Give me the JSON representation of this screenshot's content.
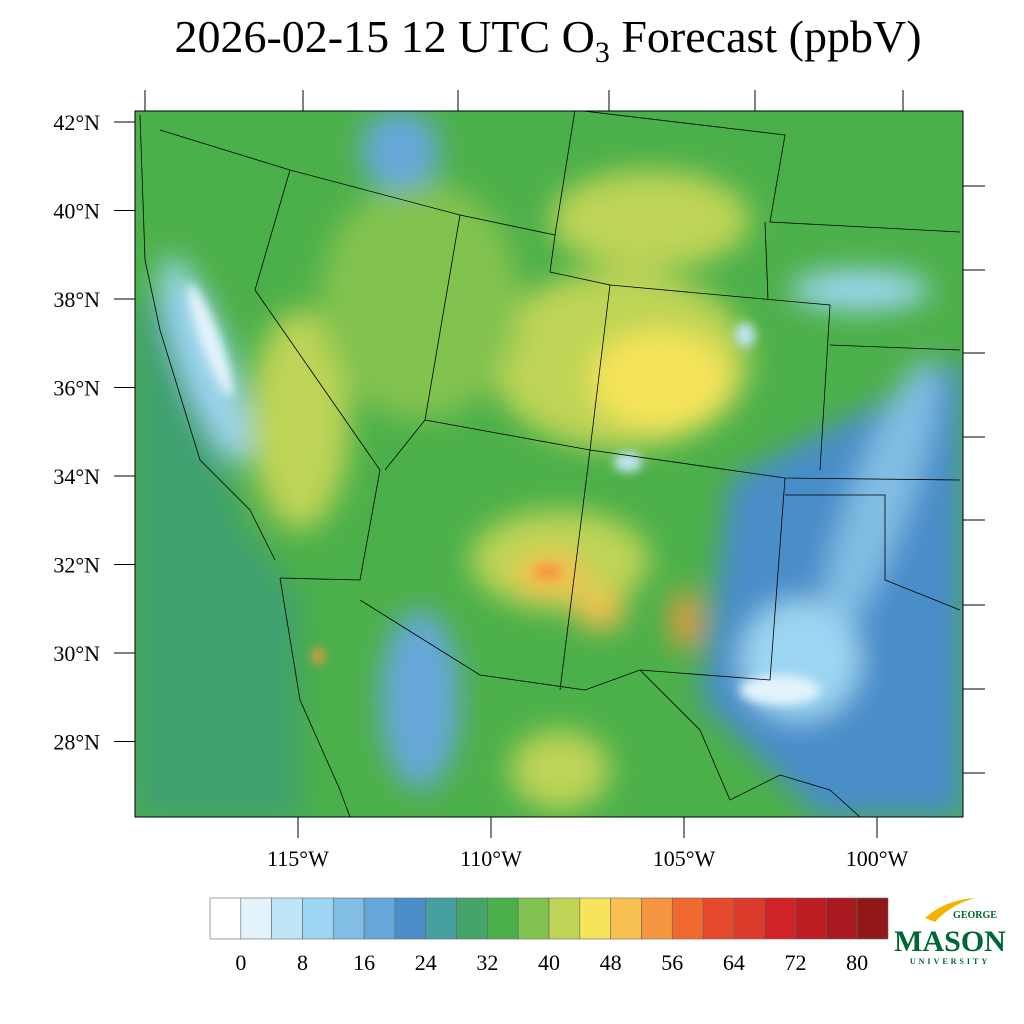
{
  "title": {
    "main": "2026-02-15 12 UTC O",
    "subscript": "3",
    "rest": " Forecast (ppbV)"
  },
  "map": {
    "lat_labels": [
      "42°N",
      "40°N",
      "38°N",
      "36°N",
      "34°N",
      "32°N",
      "30°N",
      "28°N"
    ],
    "lon_labels": [
      "115°W",
      "110°W",
      "105°W",
      "100°W"
    ]
  },
  "colorbar": {
    "colors": [
      "#ffffff",
      "#e2f3fb",
      "#bfe4f6",
      "#9dd6f2",
      "#82bde3",
      "#66a7da",
      "#4a8dc9",
      "#46a0a0",
      "#44a46a",
      "#4cb04a",
      "#82c250",
      "#bed456",
      "#f6e45a",
      "#f8c050",
      "#f69640",
      "#f06a30",
      "#e64a2c",
      "#dc3a2a",
      "#d02428",
      "#bc1e24",
      "#a81a20",
      "#901818"
    ],
    "ticks": [
      0,
      8,
      16,
      24,
      32,
      40,
      48,
      56,
      64,
      72,
      80
    ]
  },
  "logo": {
    "top": "GEORGE",
    "name": "MASON",
    "bottom": "UNIVERSITY"
  }
}
